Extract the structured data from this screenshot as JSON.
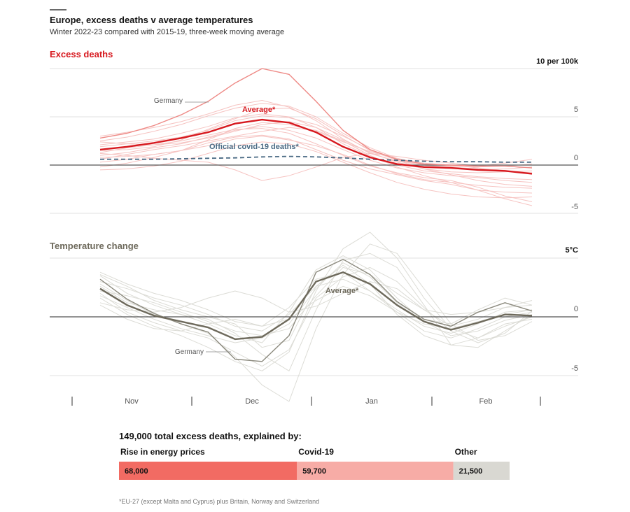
{
  "header": {
    "title": "Europe, excess deaths v average temperatures",
    "subtitle": "Winter 2022-23 compared with 2015-19, three-week moving average"
  },
  "months": [
    "Nov",
    "Dec",
    "Jan",
    "Feb"
  ],
  "colors": {
    "accent_red": "#d7191f",
    "red_bg_lines": "#f6c3c1",
    "germany_red": "#ee8a86",
    "covid_blue": "#4a6a84",
    "gray_avg": "#6e6a5c",
    "gray_bg_lines": "#dcdcd6",
    "bar_energy": "#f26b63",
    "bar_covid": "#f7aca6",
    "bar_other": "#d9d8d2"
  },
  "chart_data": [
    {
      "type": "line",
      "panel_title": "Excess deaths",
      "unit_label": "10 per 100k",
      "y_ticks": [
        "5",
        "0",
        "-5"
      ],
      "ylim": [
        -5,
        10
      ],
      "week_count": 17,
      "series": [
        {
          "name": "Average*",
          "values": [
            1.6,
            1.9,
            2.3,
            2.8,
            3.4,
            4.3,
            4.7,
            4.4,
            3.4,
            1.9,
            0.8,
            0.1,
            -0.2,
            -0.3,
            -0.5,
            -0.6,
            -0.9
          ]
        },
        {
          "name": "Official covid-19 deaths*",
          "values": [
            0.6,
            0.6,
            0.6,
            0.65,
            0.7,
            0.75,
            0.85,
            0.9,
            0.85,
            0.75,
            0.6,
            0.5,
            0.4,
            0.35,
            0.35,
            0.3,
            0.3
          ]
        },
        {
          "name": "Germany",
          "values": [
            2.8,
            3.3,
            4.1,
            5.2,
            6.6,
            8.5,
            10.0,
            9.4,
            6.6,
            3.6,
            1.6,
            0.6,
            0.1,
            0.0,
            -0.1,
            -0.1,
            -0.3
          ]
        }
      ],
      "background_series": [
        [
          3.0,
          3.4,
          3.9,
          4.5,
          5.3,
          6.2,
          6.7,
          6.0,
          4.6,
          2.7,
          1.2,
          0.4,
          0.0,
          -0.2,
          -0.4,
          -0.6,
          -0.9
        ],
        [
          1.0,
          1.3,
          1.8,
          2.2,
          2.9,
          3.6,
          4.0,
          3.6,
          2.8,
          1.6,
          0.5,
          -0.3,
          -0.8,
          -1.1,
          -1.3,
          -1.6,
          -1.8
        ],
        [
          2.1,
          2.4,
          2.7,
          3.3,
          4.0,
          4.9,
          5.3,
          5.0,
          3.9,
          2.2,
          0.9,
          0.0,
          -0.6,
          -0.9,
          -1.2,
          -1.4,
          -1.5
        ],
        [
          0.3,
          0.6,
          1.1,
          1.5,
          2.0,
          2.7,
          3.0,
          2.6,
          2.0,
          1.1,
          0.0,
          -0.9,
          -1.5,
          -1.8,
          -2.1,
          -2.3,
          -2.4
        ],
        [
          -0.2,
          0.2,
          0.8,
          1.5,
          2.3,
          2.9,
          3.1,
          2.7,
          1.6,
          0.5,
          -0.4,
          -1.0,
          -1.6,
          -2.0,
          -2.6,
          -2.8,
          -2.9
        ],
        [
          2.5,
          2.9,
          3.5,
          4.2,
          5.1,
          5.9,
          6.4,
          6.1,
          5.0,
          3.3,
          1.8,
          0.7,
          0.1,
          -0.1,
          -0.2,
          -0.1,
          0.1
        ],
        [
          1.3,
          1.8,
          2.1,
          2.5,
          3.1,
          3.7,
          3.8,
          3.3,
          2.2,
          1.0,
          -0.1,
          -0.8,
          -1.3,
          -1.6,
          -2.3,
          -3.2,
          -3.8
        ],
        [
          0.8,
          0.9,
          1.1,
          1.5,
          2.6,
          3.8,
          4.4,
          4.2,
          3.5,
          2.4,
          1.4,
          0.6,
          0.2,
          0.0,
          -0.3,
          -0.6,
          -0.8
        ],
        [
          1.9,
          2.2,
          2.5,
          2.9,
          3.6,
          4.6,
          5.1,
          4.9,
          4.2,
          3.0,
          1.6,
          0.5,
          -0.4,
          -1.0,
          -1.6,
          -2.0,
          -2.2
        ],
        [
          1.2,
          1.0,
          0.7,
          0.5,
          0.3,
          -0.5,
          -1.6,
          -1.1,
          -0.2,
          0.8,
          1.2,
          0.9,
          0.5,
          0.2,
          -0.1,
          0.2,
          0.6
        ],
        [
          2.4,
          2.2,
          2.1,
          2.3,
          2.8,
          3.5,
          4.2,
          4.5,
          3.9,
          2.6,
          1.3,
          0.3,
          -0.4,
          -0.7,
          -0.8,
          -0.7,
          -0.6
        ],
        [
          0.6,
          1.1,
          1.6,
          2.0,
          2.5,
          3.0,
          3.5,
          3.9,
          3.6,
          2.5,
          1.0,
          -0.2,
          -1.1,
          -1.8,
          -2.6,
          -3.5,
          -4.2
        ],
        [
          1.5,
          1.6,
          1.9,
          2.6,
          3.7,
          4.8,
          5.8,
          5.9,
          4.8,
          3.1,
          1.5,
          0.5,
          0.0,
          -0.3,
          -0.5,
          -0.4,
          -0.2
        ],
        [
          -0.5,
          -0.4,
          -0.1,
          0.4,
          1.2,
          2.0,
          2.4,
          2.2,
          1.4,
          0.3,
          -0.8,
          -1.8,
          -2.5,
          -3.0,
          -3.3,
          -3.4,
          -3.3
        ]
      ]
    },
    {
      "type": "line",
      "panel_title": "Temperature change",
      "unit_label": "5°C",
      "y_ticks": [
        "0",
        "-5"
      ],
      "ylim": [
        -5,
        5
      ],
      "week_count": 17,
      "series": [
        {
          "name": "Average*",
          "values": [
            2.4,
            1.0,
            0.1,
            -0.4,
            -0.9,
            -1.9,
            -1.7,
            -0.2,
            3.0,
            3.8,
            2.8,
            1.0,
            -0.4,
            -1.1,
            -0.5,
            0.2,
            0.1
          ]
        },
        {
          "name": "Germany",
          "values": [
            3.2,
            1.5,
            0.3,
            -0.6,
            -1.3,
            -3.6,
            -3.8,
            -1.6,
            3.8,
            4.9,
            3.6,
            1.3,
            -0.2,
            -0.8,
            0.4,
            1.2,
            0.5
          ]
        }
      ],
      "background_series": [
        [
          3.5,
          2.0,
          1.0,
          0.2,
          -0.6,
          -1.6,
          -2.2,
          0.4,
          4.0,
          5.2,
          4.0,
          1.6,
          -0.4,
          -1.6,
          -1.2,
          -0.3,
          0.2
        ],
        [
          2.0,
          0.4,
          -0.5,
          -1.2,
          -1.8,
          -3.0,
          -4.2,
          -2.8,
          1.6,
          3.4,
          4.2,
          3.0,
          0.8,
          -1.2,
          -2.2,
          -1.4,
          0.5
        ],
        [
          1.2,
          0.6,
          0.4,
          0.8,
          1.6,
          2.2,
          1.6,
          0.4,
          0.9,
          2.0,
          3.0,
          2.4,
          0.6,
          -0.8,
          -0.2,
          0.8,
          1.4
        ],
        [
          2.8,
          1.4,
          0.2,
          -0.6,
          -1.4,
          -3.4,
          -5.8,
          -7.2,
          -1.0,
          3.6,
          6.2,
          5.4,
          2.4,
          -0.6,
          -2.0,
          -1.6,
          -0.4
        ],
        [
          3.0,
          2.4,
          1.6,
          1.0,
          0.2,
          -0.8,
          -1.2,
          0.2,
          2.6,
          3.2,
          2.2,
          0.6,
          -0.8,
          -1.4,
          -0.6,
          0.4,
          0.6
        ],
        [
          1.6,
          0.2,
          -0.8,
          -1.6,
          -2.6,
          -3.8,
          -4.6,
          -3.0,
          2.2,
          5.8,
          7.2,
          5.0,
          1.6,
          -1.0,
          -1.8,
          -0.8,
          0.0
        ],
        [
          2.2,
          1.8,
          1.2,
          0.4,
          -0.4,
          -1.2,
          -1.6,
          -1.0,
          1.8,
          4.2,
          3.6,
          2.0,
          0.6,
          0.2,
          0.4,
          0.8,
          1.0
        ],
        [
          3.6,
          2.6,
          1.4,
          0.6,
          0.0,
          -0.6,
          -2.6,
          -2.0,
          2.6,
          4.4,
          2.8,
          0.2,
          -1.6,
          -2.4,
          -1.8,
          -0.6,
          -0.2
        ],
        [
          1.0,
          -0.2,
          -1.0,
          -1.2,
          -0.6,
          -0.2,
          -0.8,
          -0.2,
          1.4,
          2.6,
          1.8,
          0.4,
          -0.6,
          -1.0,
          -0.4,
          0.2,
          0.6
        ],
        [
          2.6,
          1.2,
          0.6,
          0.2,
          -0.2,
          -1.4,
          -3.2,
          -4.6,
          0.6,
          4.8,
          5.4,
          4.2,
          1.0,
          -2.4,
          -2.6,
          -1.2,
          0.2
        ],
        [
          3.8,
          2.8,
          2.0,
          1.4,
          0.6,
          -0.4,
          -0.8,
          0.8,
          3.2,
          3.8,
          2.2,
          0.4,
          -1.2,
          -1.8,
          -1.0,
          0.0,
          0.4
        ],
        [
          1.8,
          0.8,
          -0.2,
          -1.0,
          -1.6,
          -2.2,
          -1.8,
          -0.6,
          2.4,
          4.6,
          3.4,
          1.2,
          -0.2,
          -0.6,
          0.6,
          1.6,
          1.0
        ]
      ],
      "annotation_texts": []
    },
    {
      "type": "bar",
      "orientation": "stacked-horizontal",
      "title": "149,000 total excess deaths, explained by:",
      "categories": [
        "Rise in energy prices",
        "Covid-19",
        "Other"
      ],
      "values": [
        68000,
        59700,
        21500
      ],
      "value_labels": [
        "68,000",
        "59,700",
        "21,500"
      ]
    }
  ],
  "footnote": "*EU-27 (except Malta and Cyprus) plus Britain, Norway and Switzerland"
}
